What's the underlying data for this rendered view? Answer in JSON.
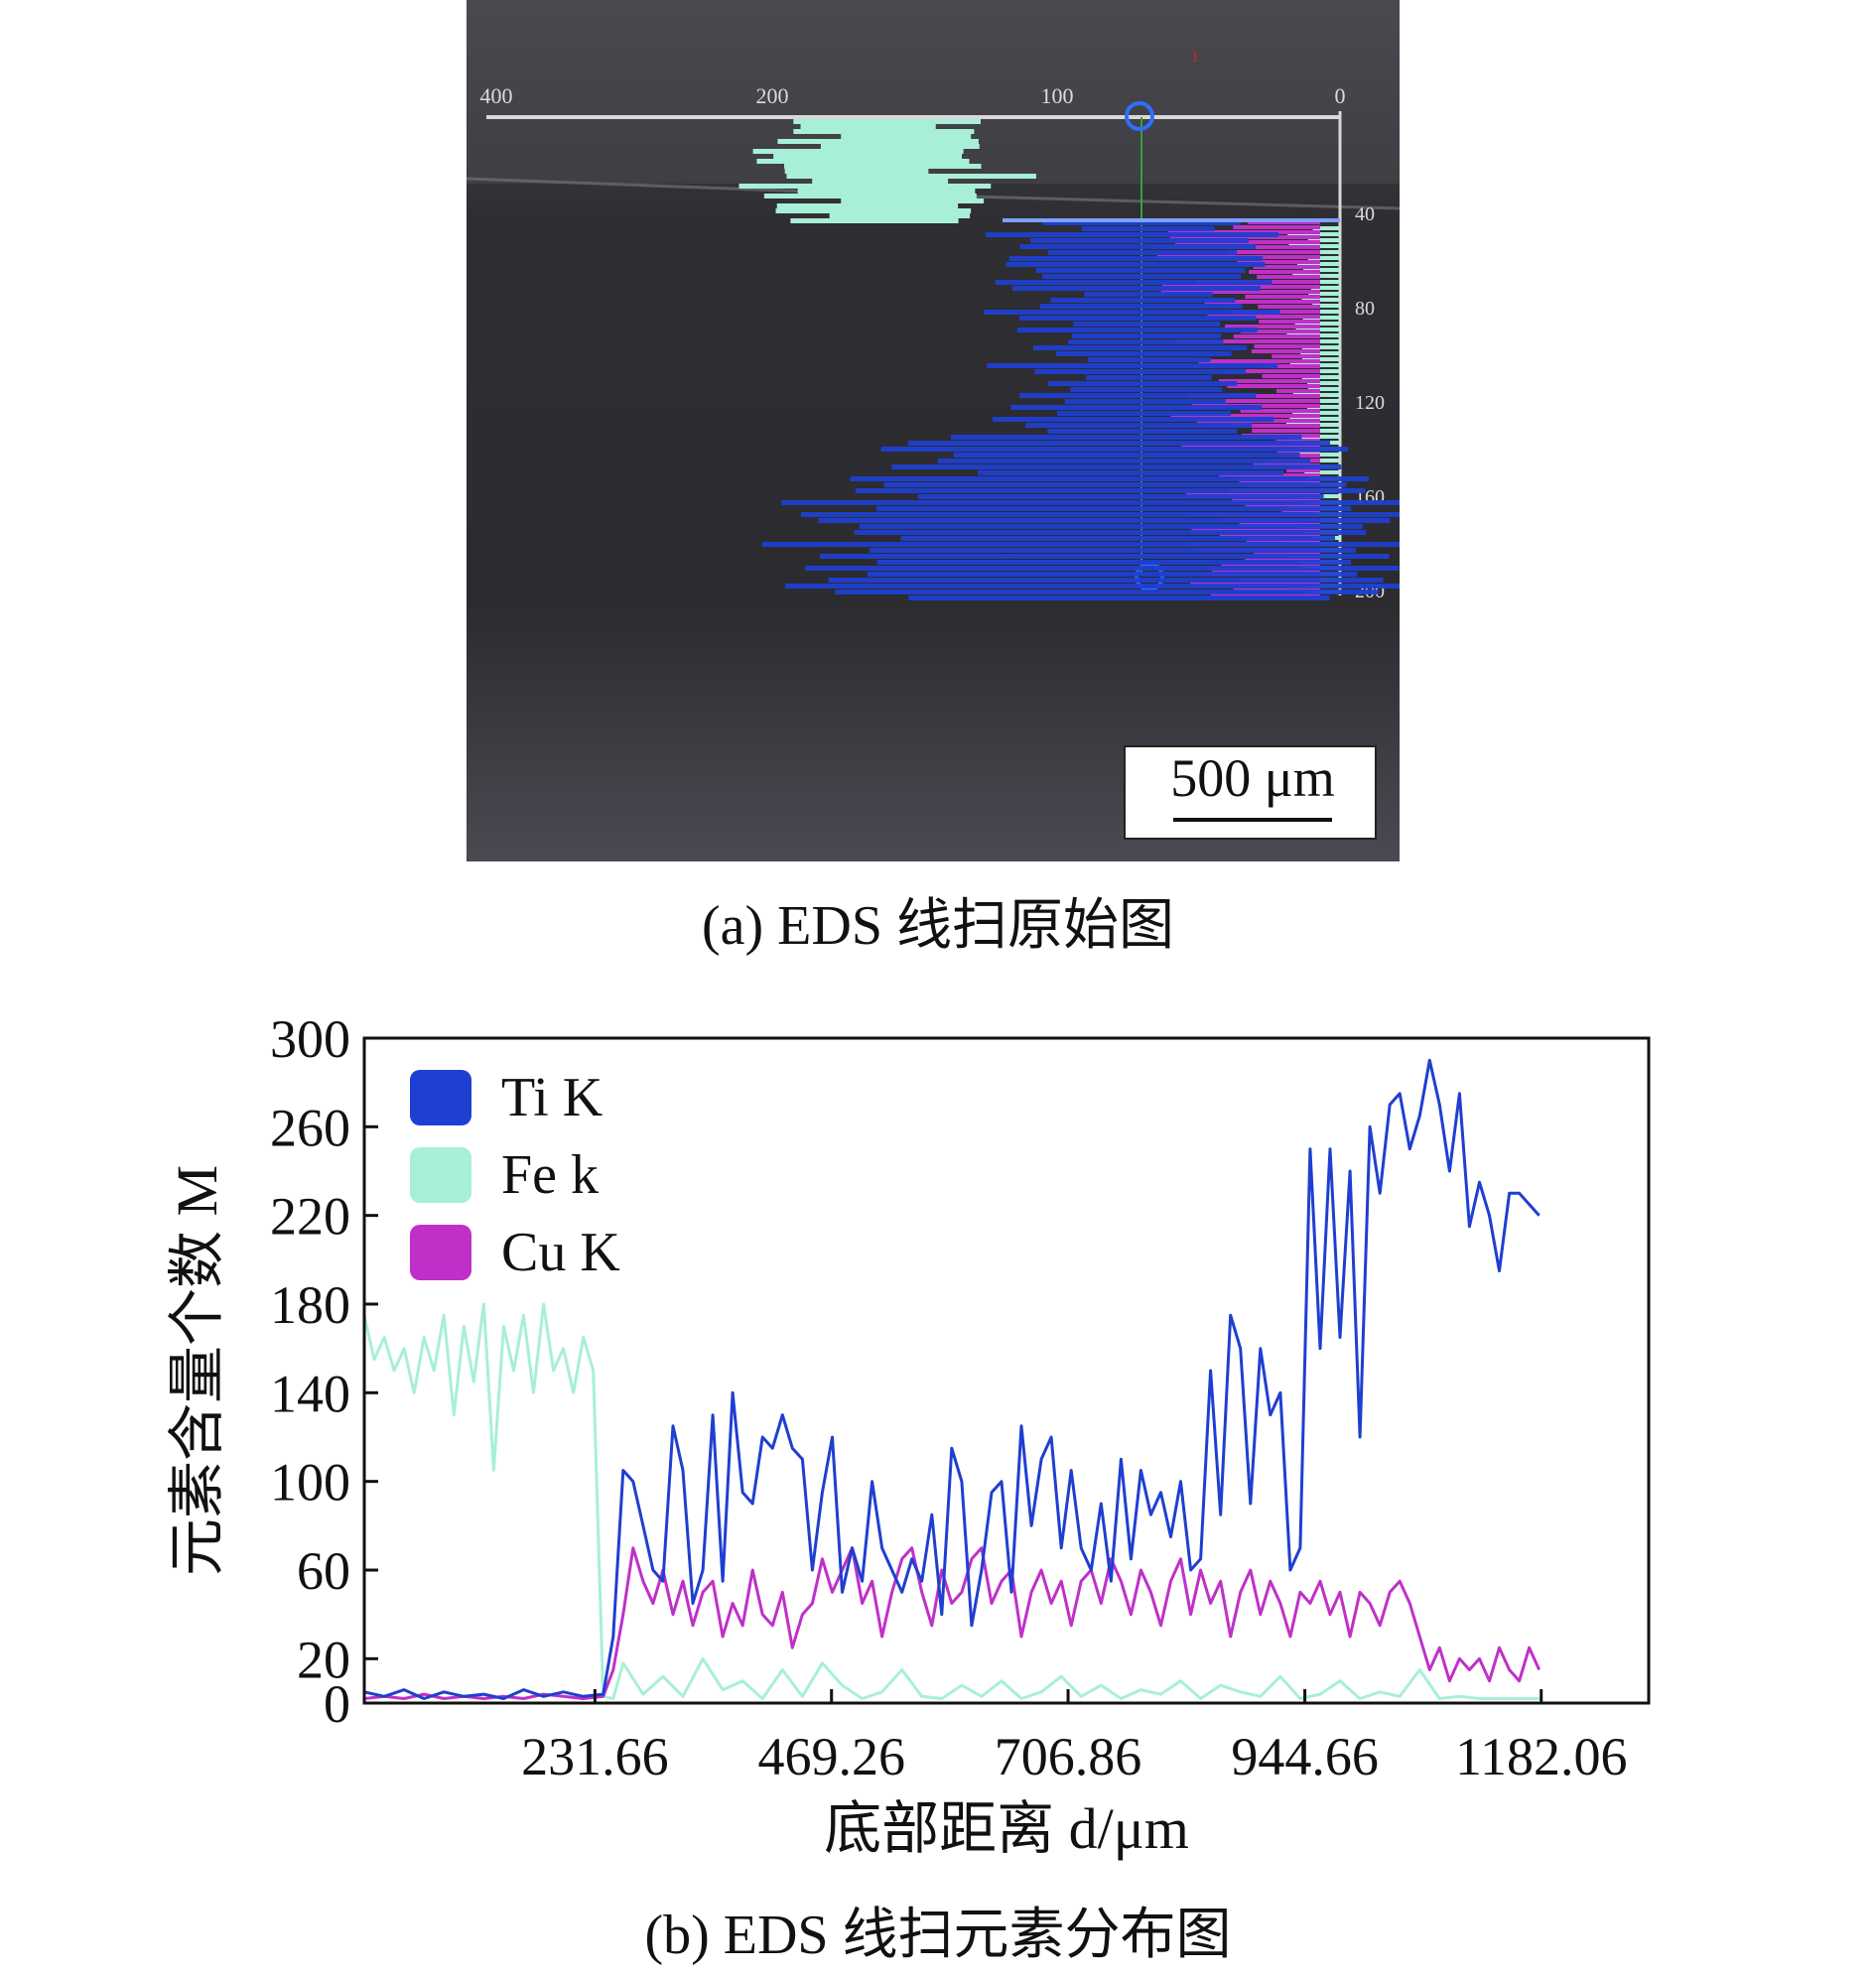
{
  "panel_a": {
    "caption": "(a) EDS 线扫原始图",
    "scale_bar": "500 μm",
    "top_ticks": [
      "400",
      "200",
      "100",
      "0"
    ],
    "right_ticks": [
      "40",
      "80",
      "120",
      "160",
      "200"
    ],
    "marker": "1",
    "colors": {
      "ti": "#1f3fd0",
      "fe": "#a8efd8",
      "cu": "#c030c8",
      "background": "#2a2a2e"
    }
  },
  "panel_b": {
    "caption": "(b) EDS 线扫元素分布图"
  },
  "chart_data": {
    "type": "line",
    "xlabel": "底部距离 d/μm",
    "ylabel": "元素含量个数 M",
    "xlim": [
      0,
      1290
    ],
    "ylim": [
      0,
      300
    ],
    "x_ticks": [
      231.66,
      469.26,
      706.86,
      944.66,
      1182.06
    ],
    "x_tick_labels": [
      "231.66",
      "469.26",
      "706.86",
      "944.66",
      "1182.06"
    ],
    "y_ticks": [
      0,
      20,
      60,
      100,
      140,
      180,
      220,
      260,
      300
    ],
    "y_tick_labels": [
      "0",
      "20",
      "60",
      "100",
      "140",
      "180",
      "220",
      "260",
      "300"
    ],
    "legend_position": "top-left",
    "series": [
      {
        "name": "Ti K",
        "color": "#1f3fd0",
        "x": [
          0,
          20,
          40,
          60,
          80,
          100,
          120,
          140,
          160,
          180,
          200,
          220,
          240,
          250,
          260,
          270,
          280,
          290,
          300,
          310,
          320,
          330,
          340,
          350,
          360,
          370,
          380,
          390,
          400,
          410,
          420,
          430,
          440,
          450,
          460,
          470,
          480,
          490,
          500,
          510,
          520,
          530,
          540,
          550,
          560,
          570,
          580,
          590,
          600,
          610,
          620,
          630,
          640,
          650,
          660,
          670,
          680,
          690,
          700,
          710,
          720,
          730,
          740,
          750,
          760,
          770,
          780,
          790,
          800,
          810,
          820,
          830,
          840,
          850,
          860,
          870,
          880,
          890,
          900,
          910,
          920,
          930,
          940,
          950,
          960,
          970,
          980,
          990,
          1000,
          1010,
          1020,
          1030,
          1040,
          1050,
          1060,
          1070,
          1080,
          1090,
          1100,
          1110,
          1120,
          1130,
          1140,
          1150,
          1160,
          1170,
          1180
        ],
        "values": [
          5,
          3,
          6,
          2,
          5,
          3,
          4,
          2,
          6,
          3,
          5,
          3,
          4,
          30,
          105,
          100,
          80,
          60,
          55,
          125,
          105,
          45,
          60,
          130,
          55,
          140,
          95,
          90,
          120,
          115,
          130,
          115,
          110,
          60,
          95,
          120,
          50,
          70,
          55,
          100,
          70,
          60,
          50,
          65,
          55,
          85,
          40,
          115,
          100,
          35,
          60,
          95,
          100,
          50,
          125,
          80,
          110,
          120,
          70,
          105,
          70,
          60,
          90,
          55,
          110,
          65,
          105,
          85,
          95,
          75,
          100,
          60,
          65,
          150,
          85,
          175,
          160,
          90,
          160,
          130,
          140,
          60,
          70,
          250,
          160,
          250,
          165,
          240,
          120,
          260,
          230,
          270,
          275,
          250,
          265,
          290,
          270,
          240,
          275,
          215,
          235,
          220,
          195,
          230,
          230,
          225,
          220
        ]
      },
      {
        "name": "Fe k",
        "color": "#a8efd8",
        "x": [
          0,
          10,
          20,
          30,
          40,
          50,
          60,
          70,
          80,
          90,
          100,
          110,
          120,
          130,
          140,
          150,
          160,
          170,
          180,
          190,
          200,
          210,
          220,
          230,
          240,
          250,
          260,
          280,
          300,
          320,
          340,
          360,
          380,
          400,
          420,
          440,
          460,
          480,
          500,
          520,
          540,
          560,
          580,
          600,
          620,
          640,
          660,
          680,
          700,
          720,
          740,
          760,
          780,
          800,
          820,
          840,
          860,
          880,
          900,
          920,
          940,
          960,
          980,
          1000,
          1020,
          1040,
          1060,
          1080,
          1100,
          1120,
          1140,
          1160,
          1180
        ],
        "values": [
          175,
          155,
          165,
          150,
          160,
          140,
          165,
          150,
          175,
          130,
          170,
          145,
          180,
          105,
          170,
          150,
          175,
          140,
          180,
          150,
          160,
          140,
          165,
          150,
          3,
          2,
          18,
          4,
          12,
          3,
          20,
          6,
          10,
          2,
          15,
          3,
          18,
          8,
          2,
          5,
          15,
          3,
          2,
          8,
          3,
          10,
          2,
          5,
          12,
          3,
          8,
          2,
          6,
          4,
          10,
          2,
          8,
          5,
          3,
          12,
          2,
          4,
          10,
          2,
          5,
          3,
          15,
          2,
          3,
          2,
          2,
          2,
          2
        ]
      },
      {
        "name": "Cu K",
        "color": "#c030c8",
        "x": [
          0,
          20,
          40,
          60,
          80,
          100,
          120,
          140,
          160,
          180,
          200,
          220,
          240,
          250,
          260,
          270,
          280,
          290,
          300,
          310,
          320,
          330,
          340,
          350,
          360,
          370,
          380,
          390,
          400,
          410,
          420,
          430,
          440,
          450,
          460,
          470,
          480,
          490,
          500,
          510,
          520,
          530,
          540,
          550,
          560,
          570,
          580,
          590,
          600,
          610,
          620,
          630,
          640,
          650,
          660,
          670,
          680,
          690,
          700,
          710,
          720,
          730,
          740,
          750,
          760,
          770,
          780,
          790,
          800,
          810,
          820,
          830,
          840,
          850,
          860,
          870,
          880,
          890,
          900,
          910,
          920,
          930,
          940,
          950,
          960,
          970,
          980,
          990,
          1000,
          1010,
          1020,
          1030,
          1040,
          1050,
          1060,
          1070,
          1080,
          1090,
          1100,
          1110,
          1120,
          1130,
          1140,
          1150,
          1160,
          1170,
          1180
        ],
        "values": [
          2,
          3,
          2,
          4,
          2,
          3,
          2,
          3,
          2,
          4,
          3,
          2,
          3,
          15,
          40,
          70,
          55,
          45,
          60,
          40,
          55,
          35,
          50,
          55,
          30,
          45,
          35,
          60,
          40,
          35,
          50,
          25,
          40,
          45,
          65,
          50,
          60,
          70,
          45,
          55,
          30,
          50,
          65,
          70,
          50,
          35,
          60,
          45,
          50,
          65,
          70,
          45,
          55,
          60,
          30,
          50,
          60,
          45,
          55,
          35,
          55,
          60,
          45,
          65,
          55,
          40,
          60,
          50,
          35,
          55,
          65,
          40,
          60,
          45,
          55,
          30,
          50,
          60,
          40,
          55,
          45,
          30,
          50,
          45,
          55,
          40,
          50,
          30,
          50,
          45,
          35,
          50,
          55,
          45,
          30,
          15,
          25,
          10,
          20,
          15,
          20,
          10,
          25,
          15,
          10,
          25,
          15
        ]
      }
    ]
  }
}
